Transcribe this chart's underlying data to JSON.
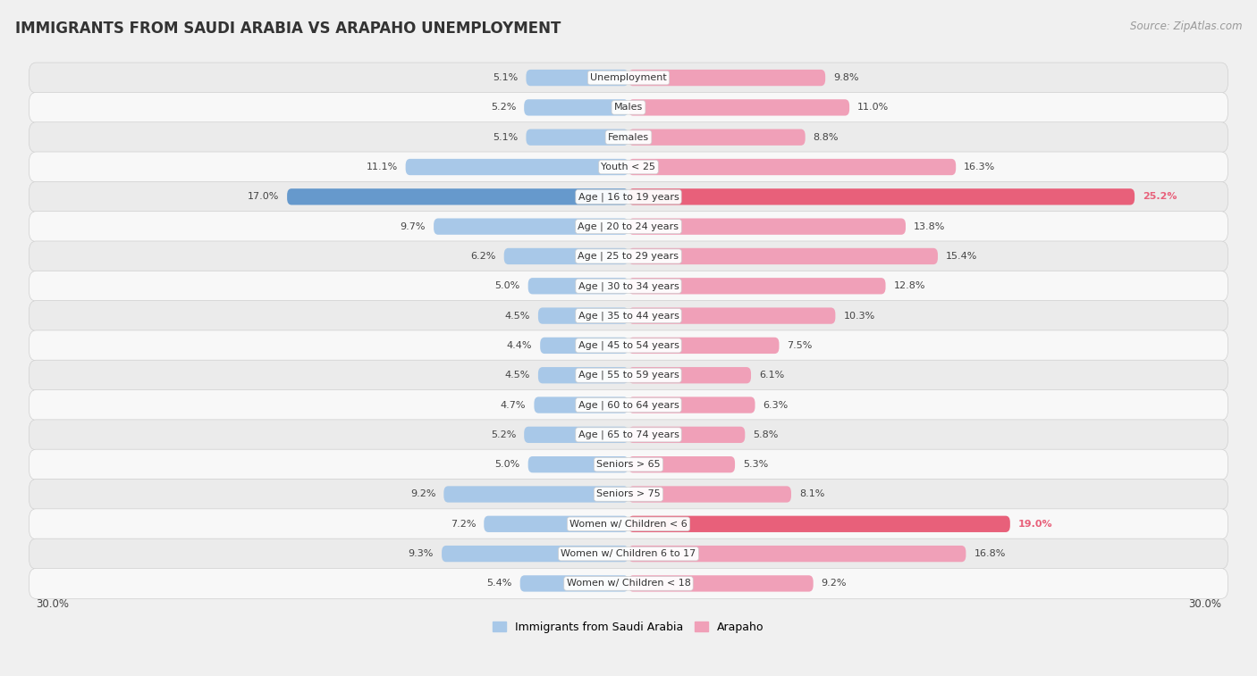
{
  "title": "IMMIGRANTS FROM SAUDI ARABIA VS ARAPAHO UNEMPLOYMENT",
  "source": "Source: ZipAtlas.com",
  "categories": [
    "Unemployment",
    "Males",
    "Females",
    "Youth < 25",
    "Age | 16 to 19 years",
    "Age | 20 to 24 years",
    "Age | 25 to 29 years",
    "Age | 30 to 34 years",
    "Age | 35 to 44 years",
    "Age | 45 to 54 years",
    "Age | 55 to 59 years",
    "Age | 60 to 64 years",
    "Age | 65 to 74 years",
    "Seniors > 65",
    "Seniors > 75",
    "Women w/ Children < 6",
    "Women w/ Children 6 to 17",
    "Women w/ Children < 18"
  ],
  "saudi_values": [
    5.1,
    5.2,
    5.1,
    11.1,
    17.0,
    9.7,
    6.2,
    5.0,
    4.5,
    4.4,
    4.5,
    4.7,
    5.2,
    5.0,
    9.2,
    7.2,
    9.3,
    5.4
  ],
  "arapaho_values": [
    9.8,
    11.0,
    8.8,
    16.3,
    25.2,
    13.8,
    15.4,
    12.8,
    10.3,
    7.5,
    6.1,
    6.3,
    5.8,
    5.3,
    8.1,
    19.0,
    16.8,
    9.2
  ],
  "saudi_color_normal": "#a8c8e8",
  "saudi_color_highlight": "#6699cc",
  "arapaho_color_normal": "#f0a0b8",
  "arapaho_color_highlight": "#e8607a",
  "saudi_highlight_indices": [
    4
  ],
  "arapaho_highlight_indices": [
    4,
    15
  ],
  "bg_color": "#f0f0f0",
  "row_color_light": "#f8f8f8",
  "row_color_dark": "#ebebeb",
  "axis_limit": 30.0,
  "legend_saudi": "Immigrants from Saudi Arabia",
  "legend_arapaho": "Arapaho",
  "title_fontsize": 12,
  "source_fontsize": 8.5,
  "label_fontsize": 8,
  "category_fontsize": 8,
  "bar_height": 0.55
}
